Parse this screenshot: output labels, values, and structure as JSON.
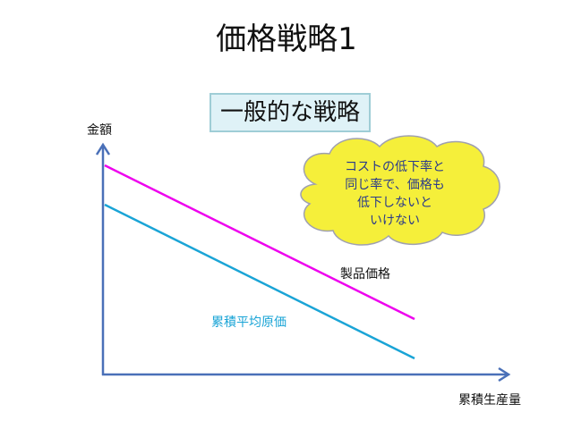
{
  "slide": {
    "title": "価格戦略1",
    "subtitle": "一般的な戦略",
    "y_axis_label": "金額",
    "x_axis_label": "累積生産量",
    "line_product_label": "製品価格",
    "line_cost_label": "累積平均原価",
    "callout_lines": [
      "コストの低下率と",
      "同じ率で、価格も",
      "低下しないと",
      "いけない"
    ]
  },
  "colors": {
    "axis": "#4a70b8",
    "product_line": "#ee00ee",
    "cost_line": "#1aa4d6",
    "callout_fill": "#f5ef3a",
    "callout_stroke": "#9fa0b0",
    "subtitle_fill": "#dff2f7"
  }
}
